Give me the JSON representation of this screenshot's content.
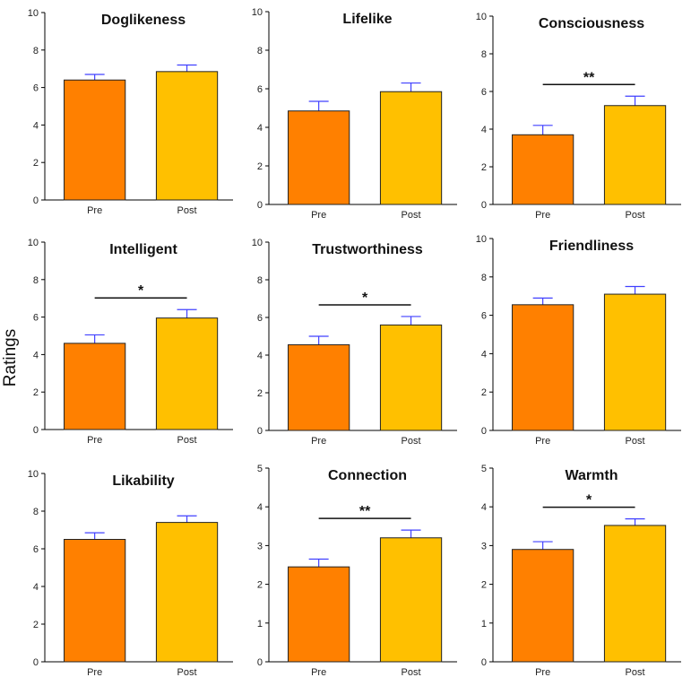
{
  "y_axis_label": "Ratings",
  "colors": {
    "pre": "#FF8000",
    "post": "#FFC000",
    "error_bar": "#4040FF",
    "axis": "#000000"
  },
  "chart_data": [
    {
      "type": "bar",
      "title": "Doglikeness",
      "categories": [
        "Pre",
        "Post"
      ],
      "values": [
        6.4,
        6.85
      ],
      "errors": [
        0.3,
        0.35
      ],
      "ylim": [
        0,
        10
      ],
      "yticks": [
        "0",
        "2",
        "4",
        "6",
        "8",
        "10"
      ],
      "significance": ""
    },
    {
      "type": "bar",
      "title": "Lifelike",
      "categories": [
        "Pre",
        "Post"
      ],
      "values": [
        4.85,
        5.85
      ],
      "errors": [
        0.5,
        0.45
      ],
      "ylim": [
        0,
        10
      ],
      "yticks": [
        "0",
        "2",
        "4",
        "6",
        "8",
        "10"
      ],
      "significance": ""
    },
    {
      "type": "bar",
      "title": "Consciousness",
      "categories": [
        "Pre",
        "Post"
      ],
      "values": [
        3.7,
        5.25
      ],
      "errors": [
        0.5,
        0.5
      ],
      "ylim": [
        0,
        10
      ],
      "yticks": [
        "0",
        "2",
        "4",
        "6",
        "8",
        "10"
      ],
      "significance": "**"
    },
    {
      "type": "bar",
      "title": "Intelligent",
      "categories": [
        "Pre",
        "Post"
      ],
      "values": [
        4.6,
        5.95
      ],
      "errors": [
        0.45,
        0.45
      ],
      "ylim": [
        0,
        10
      ],
      "yticks": [
        "0",
        "2",
        "4",
        "6",
        "8",
        "10"
      ],
      "significance": "*"
    },
    {
      "type": "bar",
      "title": "Trustworthiness",
      "categories": [
        "Pre",
        "Post"
      ],
      "values": [
        4.55,
        5.6
      ],
      "errors": [
        0.45,
        0.45
      ],
      "ylim": [
        0,
        10
      ],
      "yticks": [
        "0",
        "2",
        "4",
        "6",
        "8",
        "10"
      ],
      "significance": "*"
    },
    {
      "type": "bar",
      "title": "Friendliness",
      "categories": [
        "Pre",
        "Post"
      ],
      "values": [
        6.55,
        7.1
      ],
      "errors": [
        0.35,
        0.4
      ],
      "ylim": [
        0,
        10
      ],
      "yticks": [
        "0",
        "2",
        "4",
        "6",
        "8",
        "10"
      ],
      "significance": ""
    },
    {
      "type": "bar",
      "title": "Likability",
      "categories": [
        "Pre",
        "Post"
      ],
      "values": [
        6.5,
        7.4
      ],
      "errors": [
        0.35,
        0.35
      ],
      "ylim": [
        0,
        10
      ],
      "yticks": [
        "0",
        "2",
        "4",
        "6",
        "8",
        "10"
      ],
      "significance": ""
    },
    {
      "type": "bar",
      "title": "Connection",
      "categories": [
        "Pre",
        "Post"
      ],
      "values": [
        2.45,
        3.2
      ],
      "errors": [
        0.2,
        0.2
      ],
      "ylim": [
        0,
        5
      ],
      "yticks": [
        "0",
        "1",
        "2",
        "3",
        "4",
        "5"
      ],
      "significance": "**"
    },
    {
      "type": "bar",
      "title": "Warmth",
      "categories": [
        "Pre",
        "Post"
      ],
      "values": [
        2.9,
        3.52
      ],
      "errors": [
        0.2,
        0.17
      ],
      "ylim": [
        0,
        5
      ],
      "yticks": [
        "0",
        "1",
        "2",
        "3",
        "4",
        "5"
      ],
      "significance": "*"
    }
  ]
}
